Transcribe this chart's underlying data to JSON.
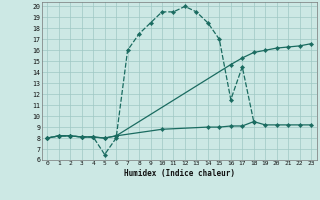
{
  "bg_color": "#cce8e4",
  "grid_color": "#9fc8c4",
  "line_color": "#1a6b60",
  "xlim": [
    -0.5,
    23.5
  ],
  "ylim": [
    6,
    20.4
  ],
  "xlabel": "Humidex (Indice chaleur)",
  "xticks": [
    0,
    1,
    2,
    3,
    4,
    5,
    6,
    7,
    8,
    9,
    10,
    11,
    12,
    13,
    14,
    15,
    16,
    17,
    18,
    19,
    20,
    21,
    22,
    23
  ],
  "yticks": [
    6,
    7,
    8,
    9,
    10,
    11,
    12,
    13,
    14,
    15,
    16,
    17,
    18,
    19,
    20
  ],
  "curve1_x": [
    0,
    1,
    2,
    3,
    4,
    5,
    6,
    7,
    8,
    9,
    10,
    11,
    12,
    13,
    14,
    15,
    16,
    17,
    18
  ],
  "curve1_y": [
    8.0,
    8.2,
    8.2,
    8.1,
    8.1,
    6.5,
    8.0,
    16.0,
    17.5,
    18.5,
    19.5,
    19.5,
    20.0,
    19.5,
    18.5,
    17.0,
    11.5,
    14.5,
    9.5
  ],
  "curve2_x": [
    0,
    1,
    2,
    3,
    4,
    5,
    6,
    16,
    17,
    18,
    19,
    20,
    21,
    22,
    23
  ],
  "curve2_y": [
    8.0,
    8.2,
    8.2,
    8.1,
    8.1,
    8.0,
    8.2,
    14.7,
    15.3,
    15.8,
    16.0,
    16.2,
    16.3,
    16.4,
    16.6
  ],
  "curve3_x": [
    0,
    1,
    2,
    3,
    4,
    5,
    6,
    10,
    14,
    15,
    16,
    17,
    18,
    19,
    20,
    21,
    22,
    23
  ],
  "curve3_y": [
    8.0,
    8.2,
    8.2,
    8.1,
    8.1,
    8.0,
    8.2,
    8.8,
    9.0,
    9.0,
    9.1,
    9.1,
    9.5,
    9.2,
    9.2,
    9.2,
    9.2,
    9.2
  ],
  "markersize": 2.2,
  "linewidth": 0.9
}
